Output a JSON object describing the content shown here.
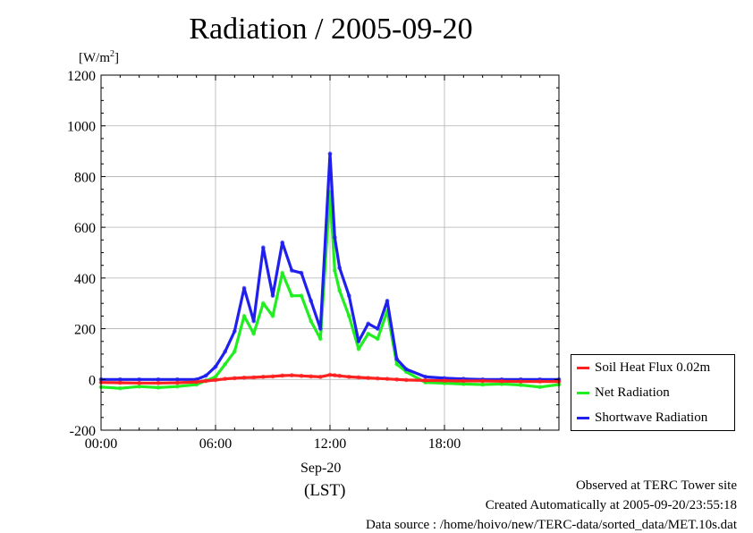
{
  "title": "Radiation / 2005-09-20",
  "ylabel": "[W/m2]",
  "ylabel_base": "[W/m",
  "ylabel_sup": "2",
  "ylabel_end": "]",
  "xdate": "Sep-20",
  "xlabel": "(LST)",
  "footer": {
    "line1": "Observed at TERC Tower site",
    "line2": "Created Automatically at 2005-09-20/23:55:18",
    "line3": "Data source : /home/hoivo/new/TERC-data/sorted_data/MET.10s.dat"
  },
  "chart_data": {
    "type": "line",
    "x_unit": "hour of day (LST)",
    "xlim": [
      0,
      24
    ],
    "ylim": [
      -200,
      1200
    ],
    "yticks": [
      -200,
      0,
      200,
      400,
      600,
      800,
      1000,
      1200
    ],
    "ytick_labels": [
      "-200",
      "0",
      "200",
      "400",
      "600",
      "800",
      "1000",
      "1200"
    ],
    "xticks": [
      0,
      6,
      12,
      18
    ],
    "xtick_labels": [
      "00:00",
      "06:00",
      "12:00",
      "18:00"
    ],
    "grid": true,
    "legend_position": "lower-right-outside",
    "x": [
      0,
      1,
      2,
      3,
      4,
      5,
      5.5,
      6,
      6.5,
      7,
      7.5,
      8,
      8.5,
      9,
      9.5,
      10,
      10.5,
      11,
      11.5,
      12,
      12.25,
      12.5,
      13,
      13.5,
      14,
      14.5,
      15,
      15.5,
      16,
      17,
      18,
      19,
      20,
      21,
      22,
      23,
      24
    ],
    "series": [
      {
        "name": "Soil Heat Flux 0.02m",
        "color": "#ff2020",
        "values": [
          -12,
          -13,
          -14,
          -14,
          -13,
          -10,
          -6,
          -2,
          2,
          5,
          7,
          8,
          10,
          12,
          15,
          16,
          14,
          12,
          10,
          18,
          16,
          14,
          10,
          8,
          6,
          4,
          2,
          0,
          -2,
          -4,
          -5,
          -6,
          -6,
          -7,
          -8,
          -8,
          -8
        ]
      },
      {
        "name": "Net Radiation",
        "color": "#20ee20",
        "values": [
          -30,
          -35,
          -28,
          -32,
          -28,
          -20,
          -5,
          10,
          60,
          110,
          250,
          180,
          300,
          250,
          420,
          330,
          330,
          230,
          160,
          740,
          430,
          350,
          250,
          120,
          180,
          160,
          270,
          60,
          30,
          -12,
          -15,
          -18,
          -20,
          -18,
          -22,
          -30,
          -20
        ]
      },
      {
        "name": "Shortwave Radiation",
        "color": "#2020ee",
        "values": [
          0,
          0,
          0,
          0,
          0,
          0,
          15,
          50,
          110,
          190,
          360,
          230,
          520,
          330,
          540,
          430,
          420,
          310,
          200,
          890,
          560,
          440,
          330,
          150,
          220,
          200,
          310,
          80,
          40,
          10,
          5,
          2,
          0,
          0,
          0,
          0,
          0
        ]
      }
    ]
  }
}
